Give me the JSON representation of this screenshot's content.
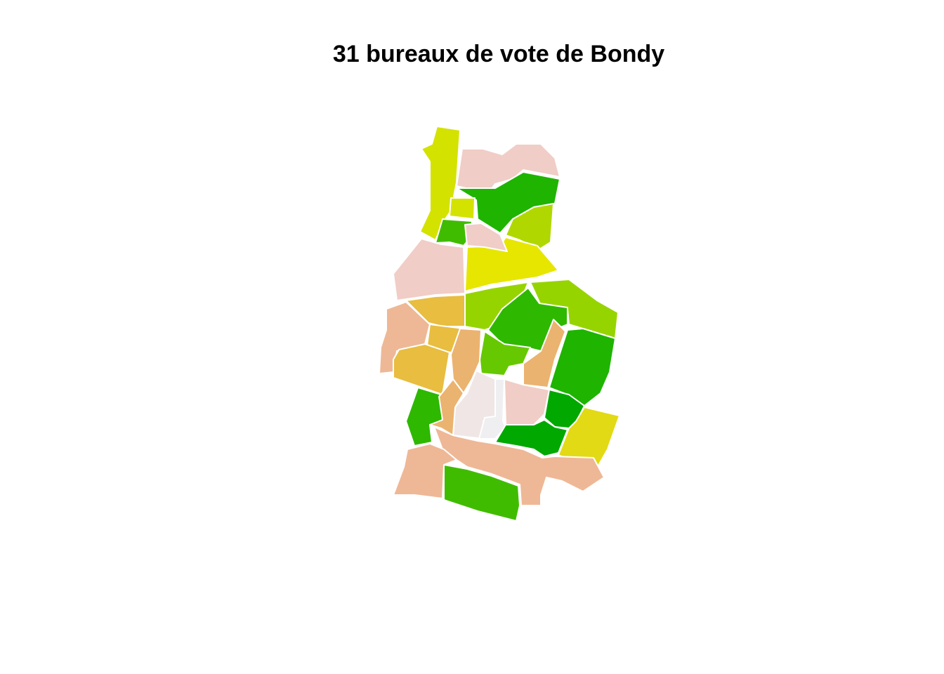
{
  "title": "31 bureaux de vote de Bondy",
  "map": {
    "count": 31,
    "region": "Bondy",
    "palette": {
      "pink_light": "#f0cdc6",
      "pink_pale": "#f0e6e6",
      "grey_pale": "#efeef0",
      "salmon": "#eeb896",
      "orange_tan": "#ebb370",
      "mustard": "#e8bd40",
      "yellow": "#e6e600",
      "yellow_dark": "#e2da14",
      "lime_yellow": "#d4e200",
      "lime": "#b0d800",
      "yellow_green": "#96d400",
      "green_light": "#66c800",
      "green_mid": "#40bc00",
      "green": "#1eb400",
      "green_dark": "#00a800"
    },
    "districts": [
      {
        "id": "bv-01",
        "color": "#d4e200"
      },
      {
        "id": "bv-02",
        "color": "#f0cdc6"
      },
      {
        "id": "bv-03",
        "color": "#1eb400"
      },
      {
        "id": "bv-04",
        "color": "#b0d800"
      },
      {
        "id": "bv-05",
        "color": "#d4e200"
      },
      {
        "id": "bv-06",
        "color": "#40bc00"
      },
      {
        "id": "bv-07",
        "color": "#f0cdc6"
      },
      {
        "id": "bv-08",
        "color": "#e6e600"
      },
      {
        "id": "bv-09",
        "color": "#f0cdc6"
      },
      {
        "id": "bv-10",
        "color": "#e8bd40"
      },
      {
        "id": "bv-11",
        "color": "#96d400"
      },
      {
        "id": "bv-12",
        "color": "#96d400"
      },
      {
        "id": "bv-13",
        "color": "#eeb896"
      },
      {
        "id": "bv-14",
        "color": "#e8bd40"
      },
      {
        "id": "bv-15",
        "color": "#e8bd40"
      },
      {
        "id": "bv-16",
        "color": "#2eb800"
      },
      {
        "id": "bv-17",
        "color": "#66c800"
      },
      {
        "id": "bv-18",
        "color": "#ebb370"
      },
      {
        "id": "bv-19",
        "color": "#1eb400"
      },
      {
        "id": "bv-20",
        "color": "#ebb370"
      },
      {
        "id": "bv-21",
        "color": "#2eb800"
      },
      {
        "id": "bv-22",
        "color": "#f0e6e6"
      },
      {
        "id": "bv-23",
        "color": "#efeef0"
      },
      {
        "id": "bv-24",
        "color": "#f0cdc6"
      },
      {
        "id": "bv-25",
        "color": "#00a800"
      },
      {
        "id": "bv-26",
        "color": "#e2da14"
      },
      {
        "id": "bv-27",
        "color": "#00a800"
      },
      {
        "id": "bv-28",
        "color": "#ebb370"
      },
      {
        "id": "bv-29",
        "color": "#eeb896"
      },
      {
        "id": "bv-30",
        "color": "#40bc00"
      },
      {
        "id": "bv-31",
        "color": "#eeb896"
      }
    ]
  }
}
